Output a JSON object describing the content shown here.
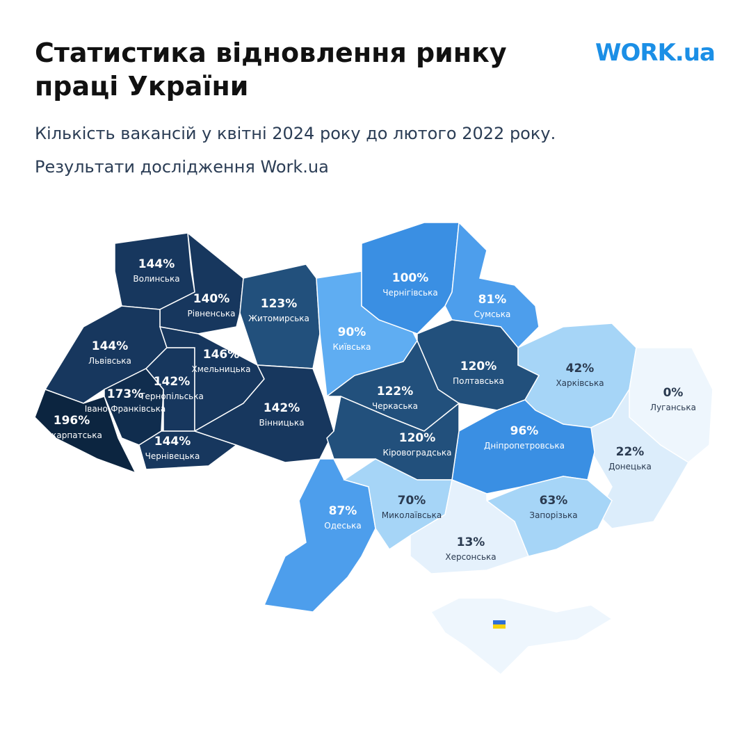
{
  "header": {
    "title_lines": [
      "Статистика відновлення ринку",
      "праці України"
    ],
    "logo": "WORK.ua",
    "subtitle_lines": [
      "Кількість вакансій у квітні 2024 року до лютого 2022 року.",
      "Результати дослідження Work.ua"
    ]
  },
  "regions": [
    {
      "name": "Волинська",
      "value": "144%",
      "color": "#17375e"
    },
    {
      "name": "Рівненська",
      "value": "140%",
      "color": "#17375e"
    },
    {
      "name": "Житомирська",
      "value": "123%",
      "color": "#22507c"
    },
    {
      "name": "Львівська",
      "value": "144%",
      "color": "#17375e"
    },
    {
      "name": "Закарпатська",
      "value": "196%",
      "color": "#0c2540"
    },
    {
      "name": "Івано-Франківська",
      "value": "173%",
      "color": "#102d4e"
    },
    {
      "name": "Тернопільська",
      "value": "142%",
      "color": "#17375e"
    },
    {
      "name": "Хмельницька",
      "value": "146%",
      "color": "#17375e"
    },
    {
      "name": "Чернівецька",
      "value": "144%",
      "color": "#17375e"
    },
    {
      "name": "Вінницька",
      "value": "142%",
      "color": "#17375e"
    },
    {
      "name": "Київська",
      "value": "90%",
      "color": "#5fadf2"
    },
    {
      "name": "Чернігівська",
      "value": "100%",
      "color": "#3a8fe3"
    },
    {
      "name": "Сумська",
      "value": "81%",
      "color": "#4d9eec"
    },
    {
      "name": "Полтавська",
      "value": "120%",
      "color": "#22507c"
    },
    {
      "name": "Черкаська",
      "value": "122%",
      "color": "#22507c"
    },
    {
      "name": "Харківська",
      "value": "42%",
      "color": "#a6d5f7"
    },
    {
      "name": "Луганська",
      "value": "0%",
      "color": "#eef6fd"
    },
    {
      "name": "Донецька",
      "value": "22%",
      "color": "#dcedfb"
    },
    {
      "name": "Дніпропетровська",
      "value": "96%",
      "color": "#3a8fe3"
    },
    {
      "name": "Кіровоградська",
      "value": "120%",
      "color": "#22507c"
    },
    {
      "name": "Одеська",
      "value": "87%",
      "color": "#4d9eec"
    },
    {
      "name": "Миколаївська",
      "value": "70%",
      "color": "#a6d5f7"
    },
    {
      "name": "Запорізька",
      "value": "63%",
      "color": "#a6d5f7"
    },
    {
      "name": "Херсонська",
      "value": "13%",
      "color": "#e5f1fc"
    }
  ]
}
